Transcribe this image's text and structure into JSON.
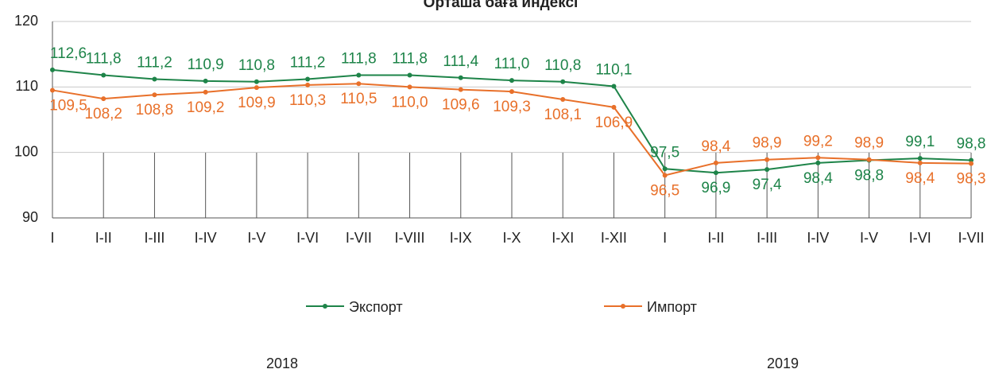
{
  "chart_data": {
    "type": "line",
    "title": "Орташа баға индексі",
    "categories": [
      "I",
      "I-II",
      "I-III",
      "I-IV",
      "I-V",
      "I-VI",
      "I-VII",
      "I-VIII",
      "I-IX",
      "I-X",
      "I-XI",
      "I-XII",
      "I",
      "I-II",
      "I-III",
      "I-IV",
      "I-V",
      "I-VI",
      "I-VII"
    ],
    "groups": [
      "2018",
      "2019"
    ],
    "series": [
      {
        "name": "Экспорт",
        "color": "#1e8449",
        "values": [
          112.6,
          111.8,
          111.2,
          110.9,
          110.8,
          111.2,
          111.8,
          111.8,
          111.4,
          111.0,
          110.8,
          110.1,
          97.5,
          96.9,
          97.4,
          98.4,
          98.8,
          99.1,
          98.8
        ],
        "value_labels": [
          "112,6",
          "111,8",
          "111,2",
          "110,9",
          "110,8",
          "111,2",
          "111,8",
          "111,8",
          "111,4",
          "111,0",
          "110,8",
          "110,1",
          "97,5",
          "96,9",
          "97,4",
          "98,4",
          "98,8",
          "99,1",
          "98,8"
        ]
      },
      {
        "name": "Импорт",
        "color": "#e8702a",
        "values": [
          109.5,
          108.2,
          108.8,
          109.2,
          109.9,
          110.3,
          110.5,
          110.0,
          109.6,
          109.3,
          108.1,
          106.9,
          96.5,
          98.4,
          98.9,
          99.2,
          98.9,
          98.4,
          98.3
        ],
        "value_labels": [
          "109,5",
          "108,2",
          "108,8",
          "109,2",
          "109,9",
          "110,3",
          "110,5",
          "110,0",
          "109,6",
          "109,3",
          "108,1",
          "106,9",
          "96,5",
          "98,4",
          "98,9",
          "99,2",
          "98,9",
          "98,4",
          "98,3"
        ]
      }
    ],
    "ylim": [
      90,
      120
    ],
    "yticks": [
      90,
      100,
      110,
      120
    ],
    "grid": true
  }
}
